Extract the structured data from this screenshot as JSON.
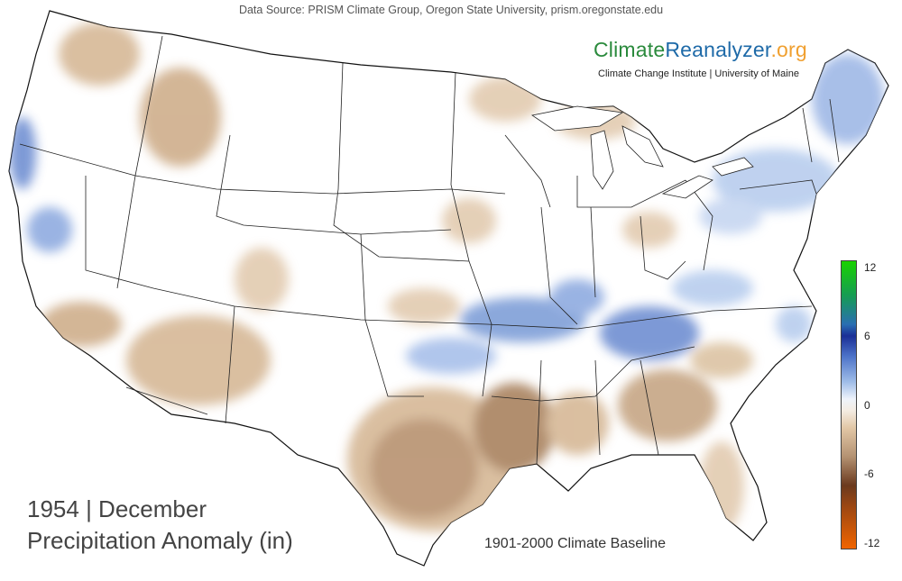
{
  "header": {
    "data_source": "Data Source: PRISM Climate Group, Oregon State University, prism.oregonstate.edu"
  },
  "brand": {
    "part1": "Climate",
    "part2": "Reanalyzer",
    "part3": ".org",
    "subtitle": "Climate Change Institute | University of Maine"
  },
  "title": {
    "line1": "1954 | December",
    "line2": "Precipitation Anomaly (in)"
  },
  "baseline": "1901-2000 Climate Baseline",
  "legend": {
    "ticks": [
      "12",
      "6",
      "0",
      "-6",
      "-12"
    ],
    "colors": {
      "high": "#19d200",
      "mid_high": "#1b2f96",
      "zero": "#ffffff",
      "mid_low": "#6b3a1e",
      "low": "#f06400"
    }
  },
  "map": {
    "variable": "Precipitation Anomaly",
    "units": "in",
    "region": "Contiguous United States",
    "wet_color": "#7f9fd8",
    "dry_color": "#d6b896",
    "very_dry_color": "#a9825e"
  }
}
